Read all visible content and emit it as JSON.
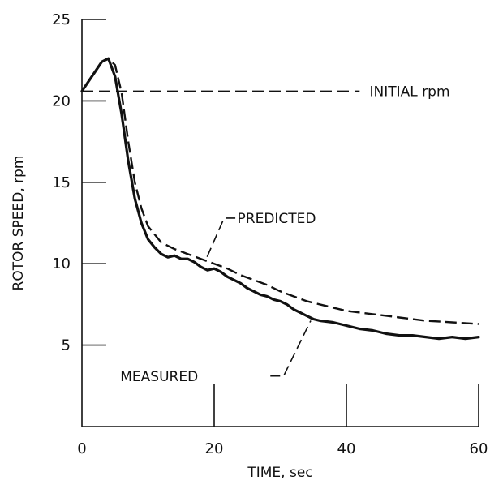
{
  "chart_data": {
    "type": "line",
    "title": "",
    "xlabel": "TIME, sec",
    "ylabel": "ROTOR SPEED, rpm",
    "xlim": [
      0,
      60
    ],
    "ylim": [
      0,
      25
    ],
    "xticks": [
      0,
      20,
      40,
      60
    ],
    "yticks": [
      5,
      10,
      15,
      20,
      25
    ],
    "grid": false,
    "series": [
      {
        "name": "MEASURED",
        "style": "solid",
        "x": [
          0,
          2,
          3,
          4,
          5,
          6,
          7,
          8,
          9,
          10,
          11,
          12,
          13,
          14,
          15,
          16,
          17,
          18,
          19,
          20,
          21,
          22,
          23,
          24,
          25,
          26,
          27,
          28,
          29,
          30,
          31,
          32,
          33,
          34,
          35,
          36,
          38,
          40,
          42,
          44,
          46,
          48,
          50,
          52,
          54,
          56,
          58,
          60
        ],
        "y": [
          20.6,
          21.8,
          22.4,
          22.6,
          21.5,
          19.2,
          16.3,
          14.0,
          12.5,
          11.5,
          11.0,
          10.6,
          10.4,
          10.5,
          10.3,
          10.3,
          10.1,
          9.8,
          9.6,
          9.7,
          9.5,
          9.2,
          9.0,
          8.8,
          8.5,
          8.3,
          8.1,
          8.0,
          7.8,
          7.7,
          7.5,
          7.2,
          7.0,
          6.8,
          6.6,
          6.5,
          6.4,
          6.2,
          6.0,
          5.9,
          5.7,
          5.6,
          5.6,
          5.5,
          5.4,
          5.5,
          5.4,
          5.5
        ]
      },
      {
        "name": "PREDICTED",
        "style": "dashed",
        "x": [
          0,
          2,
          3,
          4,
          5,
          6,
          7,
          8,
          9,
          10,
          12,
          14,
          16,
          18,
          20,
          22,
          24,
          26,
          28,
          30,
          32,
          34,
          36,
          38,
          40,
          44,
          48,
          52,
          56,
          60
        ],
        "y": [
          20.6,
          21.8,
          22.4,
          22.6,
          22.2,
          20.5,
          17.5,
          15.0,
          13.4,
          12.3,
          11.3,
          10.9,
          10.6,
          10.3,
          10.0,
          9.7,
          9.3,
          9.0,
          8.7,
          8.3,
          8.0,
          7.7,
          7.5,
          7.3,
          7.1,
          6.9,
          6.7,
          6.5,
          6.4,
          6.3
        ]
      },
      {
        "name": "INITIAL rpm",
        "style": "dashed",
        "x": [
          0,
          42
        ],
        "y": [
          20.6,
          20.6
        ]
      }
    ],
    "annotations": [
      "INITIAL rpm",
      "PREDICTED",
      "MEASURED"
    ]
  }
}
